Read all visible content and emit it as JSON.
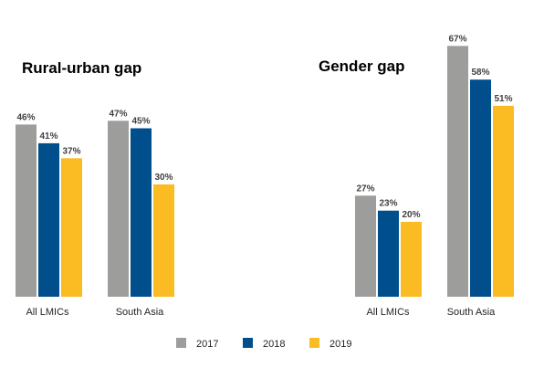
{
  "chart_data": [
    {
      "type": "bar",
      "title": "Rural-urban gap",
      "categories": [
        "All LMICs",
        "South Asia"
      ],
      "series": [
        {
          "name": "2017",
          "values": [
            46,
            47
          ]
        },
        {
          "name": "2018",
          "values": [
            41,
            45
          ]
        },
        {
          "name": "2019",
          "values": [
            37,
            30
          ]
        }
      ],
      "value_suffix": "%",
      "grid": false
    },
    {
      "type": "bar",
      "title": "Gender gap",
      "categories": [
        "All LMICs",
        "South Asia"
      ],
      "series": [
        {
          "name": "2017",
          "values": [
            27,
            67
          ]
        },
        {
          "name": "2018",
          "values": [
            23,
            58
          ]
        },
        {
          "name": "2019",
          "values": [
            20,
            51
          ]
        }
      ],
      "value_suffix": "%",
      "grid": false
    }
  ],
  "legend": {
    "position": "bottom",
    "items": [
      {
        "label": "2017",
        "color": "#9d9d9b"
      },
      {
        "label": "2018",
        "color": "#004f8c"
      },
      {
        "label": "2019",
        "color": "#fbbb22"
      }
    ]
  }
}
